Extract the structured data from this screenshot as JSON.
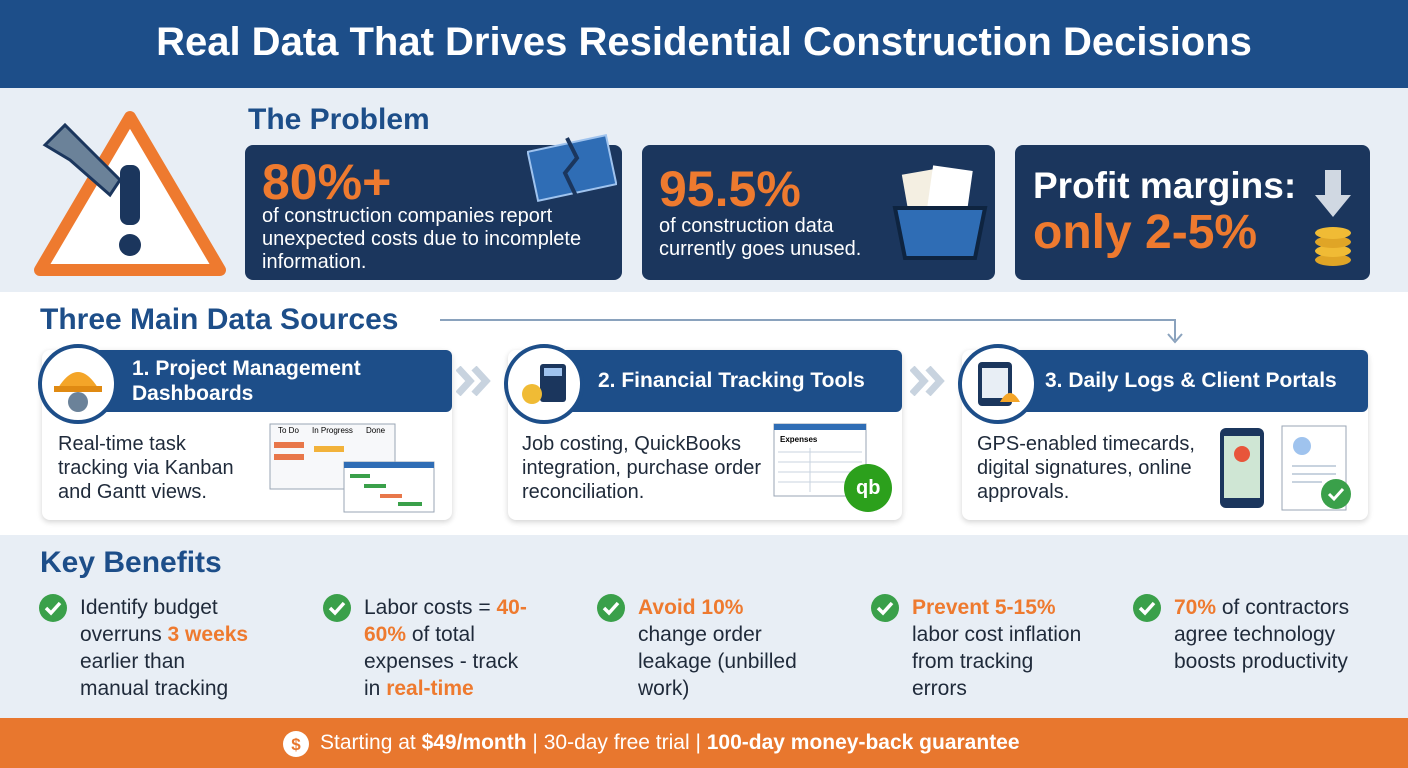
{
  "header": {
    "title": "Real Data That Drives Residential Construction Decisions"
  },
  "problem": {
    "heading": "The Problem",
    "cards": [
      {
        "stat": "80%+",
        "text": "of construction companies report unexpected costs due to incomplete information."
      },
      {
        "stat": "95.5%",
        "text": "of construction data currently goes unused."
      },
      {
        "label": "Profit margins:",
        "stat": "only 2-5%"
      }
    ]
  },
  "sources": {
    "heading": "Three Main Data Sources",
    "items": [
      {
        "title": "1. Project Management Dashboards",
        "text": "Real-time task tracking via Kanban and Gantt views.",
        "illustration": [
          "To Do",
          "In Progress",
          "Done"
        ]
      },
      {
        "title": "2. Financial Tracking Tools",
        "text": "Job costing, QuickBooks integration, purchase order reconciliation.",
        "illustration": [
          "Expenses"
        ]
      },
      {
        "title": "3. Daily Logs & Client Portals",
        "text": "GPS-enabled timecards, digital signatures, online approvals."
      }
    ]
  },
  "benefits": {
    "heading": "Key Benefits",
    "emphasis_color": "#ee7a2f",
    "items": [
      {
        "parts": [
          {
            "text": "Identify budget overruns ",
            "emphasis": false
          },
          {
            "text": "3 weeks",
            "emphasis": true
          },
          {
            "text": " earlier than manual tracking",
            "emphasis": false
          }
        ]
      },
      {
        "parts": [
          {
            "text": "Labor costs = ",
            "emphasis": false
          },
          {
            "text": "40-60%",
            "emphasis": true
          },
          {
            "text": " of total expenses - track in ",
            "emphasis": false
          },
          {
            "text": "real-time",
            "emphasis": true
          }
        ]
      },
      {
        "parts": [
          {
            "text": "Avoid 10%",
            "emphasis": true
          },
          {
            "text": " change order leakage (unbilled work)",
            "emphasis": false
          }
        ]
      },
      {
        "parts": [
          {
            "text": "Prevent 5-15%",
            "emphasis": true
          },
          {
            "text": " labor cost inflation from tracking errors",
            "emphasis": false
          }
        ]
      },
      {
        "parts": [
          {
            "text": "70%",
            "emphasis": true
          },
          {
            "text": " of contractors agree technology boosts productivity",
            "emphasis": false
          }
        ]
      }
    ]
  },
  "footer": {
    "parts": [
      {
        "text": "Starting at ",
        "bold": false
      },
      {
        "text": "$49/month",
        "bold": true
      },
      {
        "text": " | 30-day free trial | ",
        "bold": false
      },
      {
        "text": "100-day money-back guarantee",
        "bold": true
      }
    ]
  }
}
